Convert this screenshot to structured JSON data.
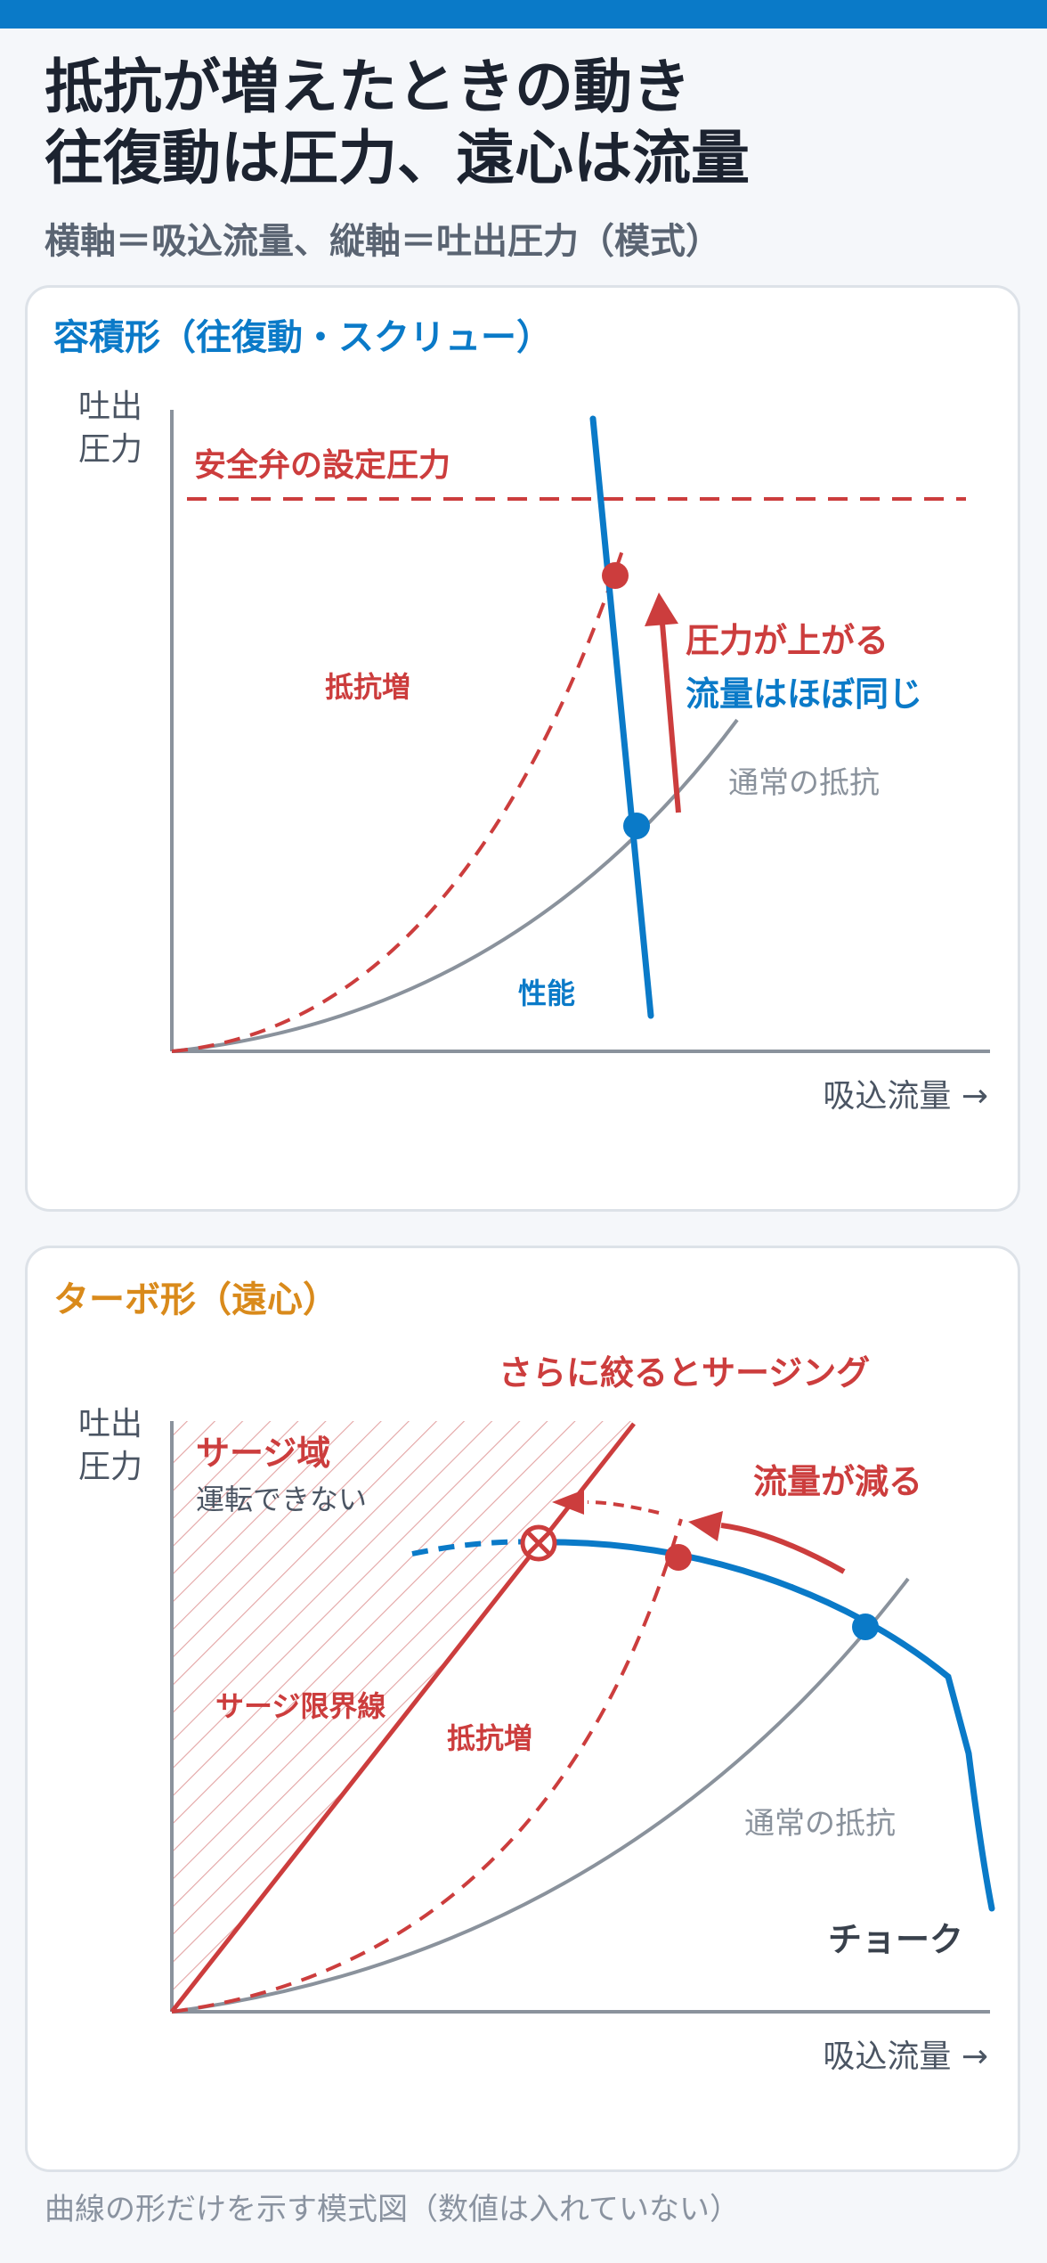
{
  "header": {
    "title_line1": "抵抗が増えたときの動き",
    "title_line2": "往復動は圧力、遠心は流量",
    "subtitle": "横軸＝吸込流量、縦軸＝吐出圧力（模式）"
  },
  "colors": {
    "accent_blue": "#0a7ac8",
    "accent_red": "#cc3d3d",
    "accent_orange": "#d98a1b",
    "axis_gray": "#8a929c",
    "text_dark": "#39414c"
  },
  "panel1": {
    "title": "容積形（往復動・スクリュー）",
    "y_axis_label_line1": "吐出",
    "y_axis_label_line2": "圧力",
    "x_axis_label": "吸込流量 →",
    "relief_valve_label": "安全弁の設定圧力",
    "resistance_increase_label": "抵抗増",
    "normal_resistance_label": "通常の抵抗",
    "performance_label": "性能",
    "pressure_rises_label": "圧力が上がる",
    "flow_same_label": "流量はほぼ同じ"
  },
  "panel2": {
    "title": "ターボ形（遠心）",
    "y_axis_label_line1": "吐出",
    "y_axis_label_line2": "圧力",
    "x_axis_label": "吸込流量 →",
    "throttle_more_label": "さらに絞るとサージング",
    "surge_region_label": "サージ域",
    "cannot_operate_label": "運転できない",
    "flow_decreases_label": "流量が減る",
    "surge_limit_label": "サージ限界線",
    "resistance_increase_label": "抵抗増",
    "normal_resistance_label": "通常の抵抗",
    "choke_label": "チョーク"
  },
  "footer": {
    "note": "曲線の形だけを示す模式図（数値は入れていない）"
  }
}
